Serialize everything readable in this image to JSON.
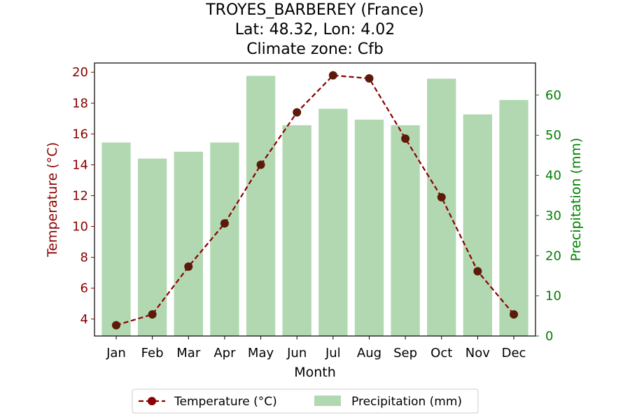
{
  "chart_data": {
    "type": "bar+line",
    "title_lines": [
      "TROYES_BARBEREY (France)",
      "Lat: 48.32, Lon: 4.02",
      "Climate zone: Cfb"
    ],
    "xlabel": "Month",
    "ylabel_left": "Temperature (°C)",
    "ylabel_right": "Precipitation (mm)",
    "categories": [
      "Jan",
      "Feb",
      "Mar",
      "Apr",
      "May",
      "Jun",
      "Jul",
      "Aug",
      "Sep",
      "Oct",
      "Nov",
      "Dec"
    ],
    "temperature": {
      "name": "Temperature (°C)",
      "values": [
        3.6,
        4.3,
        7.4,
        10.2,
        14.0,
        17.4,
        19.8,
        19.6,
        15.7,
        11.9,
        7.1,
        4.3
      ],
      "ylim": [
        2.9,
        20.6
      ],
      "ticks": [
        4,
        6,
        8,
        10,
        12,
        14,
        16,
        18,
        20
      ]
    },
    "precipitation": {
      "name": "Precipitation (mm)",
      "values": [
        48.2,
        44.2,
        45.9,
        48.2,
        64.8,
        52.5,
        56.6,
        53.9,
        52.5,
        64.1,
        55.2,
        58.8
      ],
      "ylim": [
        0,
        68.0
      ],
      "ticks": [
        0,
        10,
        20,
        30,
        40,
        50,
        60
      ]
    },
    "colors": {
      "temperature": "#8b0000",
      "temperature_marker_face": "#5c1a0a",
      "precipitation": "#b2d8b2",
      "left_axis": "#8b0000",
      "right_axis": "#008000"
    },
    "legend_position": "bottom-center",
    "grid": false
  }
}
